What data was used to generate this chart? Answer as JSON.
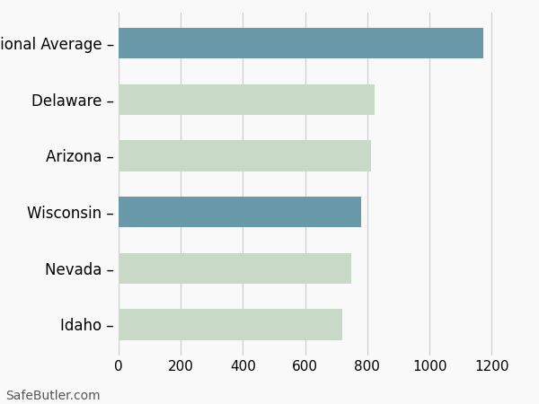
{
  "categories": [
    "Idaho",
    "Nevada",
    "Wisconsin",
    "Arizona",
    "Delaware",
    "National Average"
  ],
  "values": [
    719,
    749,
    781,
    812,
    822,
    1172
  ],
  "bar_colors": [
    "#c8d9c8",
    "#c8d9c8",
    "#6a9aaa",
    "#c8d9c8",
    "#c8d9c8",
    "#6a9aaa"
  ],
  "xlim": [
    0,
    1300
  ],
  "xticks": [
    0,
    200,
    400,
    600,
    800,
    1000,
    1200
  ],
  "background_color": "#f9f9f9",
  "bar_height": 0.55,
  "grid_color": "#cccccc",
  "watermark": "SafeButler.com",
  "label_fontsize": 12,
  "tick_fontsize": 11,
  "watermark_fontsize": 10
}
